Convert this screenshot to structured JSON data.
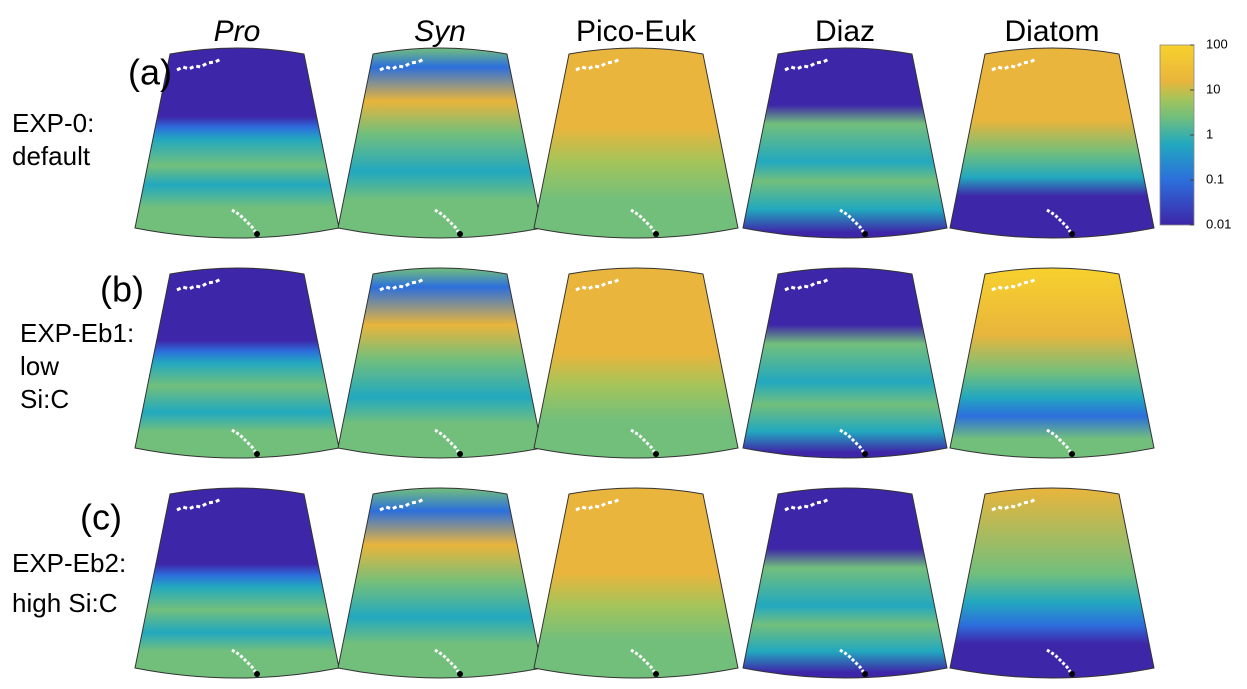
{
  "columns": [
    "Pro",
    "Syn",
    "Pico-Euk",
    "Diaz",
    "Diatom"
  ],
  "rows": [
    {
      "tag": "(a)",
      "label": [
        "EXP-0:",
        "default"
      ]
    },
    {
      "tag": "(b)",
      "label": [
        "EXP-Eb1:",
        "low",
        "Si:C"
      ]
    },
    {
      "tag": "(c)",
      "label": [
        "EXP-Eb2:",
        "high Si:C"
      ]
    }
  ],
  "colorbar": {
    "ticks": [
      0.01,
      0.1,
      1,
      10,
      100
    ],
    "lim": [
      0.01,
      100
    ],
    "log": true
  }
}
